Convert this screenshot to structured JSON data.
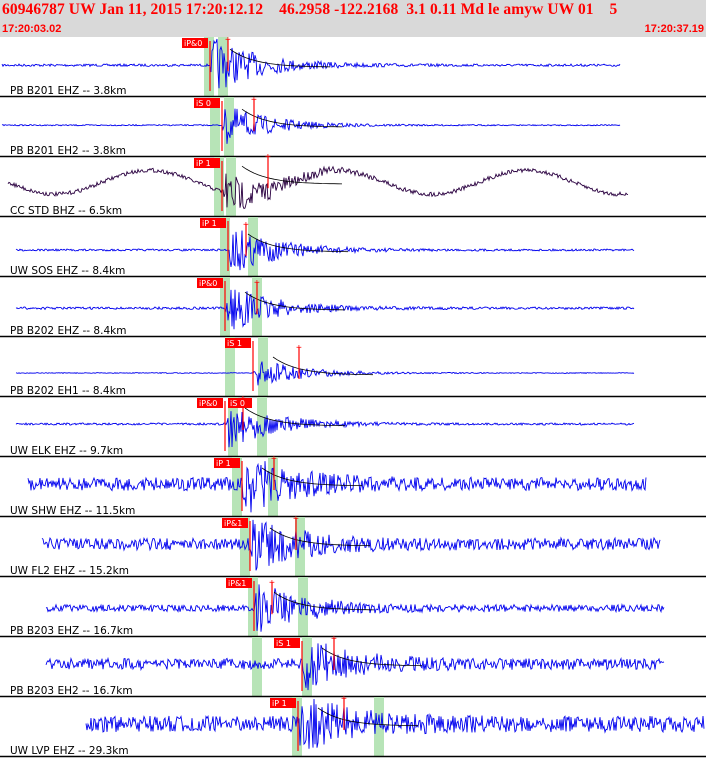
{
  "header": {
    "title": "60946787 UW Jan 11, 2015 17:20:12.12    46.2958 -122.2168  3.1 0.11 Md le amyw UW 01    5",
    "start_time": "17:20:03.02",
    "end_time": "17:20:37.19"
  },
  "colors": {
    "header_bg": "#d9d9d9",
    "header_text": "#ff0000",
    "trace_blue": "#0000ee",
    "trace_dark": "#2a0040",
    "pick": "#ff0000",
    "window": "#b7e4b7",
    "separator": "#000000"
  },
  "traces": [
    {
      "label": "PB B201 EHZ -- 3.8km",
      "pick": "iP&0",
      "color": "blue"
    },
    {
      "label": "PB B201 EH2 -- 3.8km",
      "pick": "iS 0",
      "color": "blue"
    },
    {
      "label": "CC STD BHZ -- 6.5km",
      "pick": "iP 1",
      "color": "dark"
    },
    {
      "label": "UW SOS EHZ -- 8.4km",
      "pick": "iP 1",
      "color": "blue"
    },
    {
      "label": "PB B202 EHZ -- 8.4km",
      "pick": "iP&0",
      "color": "blue"
    },
    {
      "label": "PB B202 EH1 -- 8.4km",
      "pick": "iS 1",
      "color": "blue"
    },
    {
      "label": "UW ELK EHZ -- 9.7km",
      "pick": "iP&0",
      "pick2": "iS 0",
      "color": "blue"
    },
    {
      "label": "UW SHW EHZ -- 11.5km",
      "pick": "iP 1",
      "color": "blue"
    },
    {
      "label": "UW FL2 EHZ -- 15.2km",
      "pick": "iP&1",
      "color": "blue"
    },
    {
      "label": "PB B203 EHZ -- 16.7km",
      "pick": "iP&1",
      "color": "blue"
    },
    {
      "label": "PB B203 EH2 -- 16.7km",
      "pick": "iS 1",
      "color": "blue"
    },
    {
      "label": "UW LVP EHZ -- 29.3km",
      "pick": "iP 1",
      "color": "blue"
    }
  ]
}
